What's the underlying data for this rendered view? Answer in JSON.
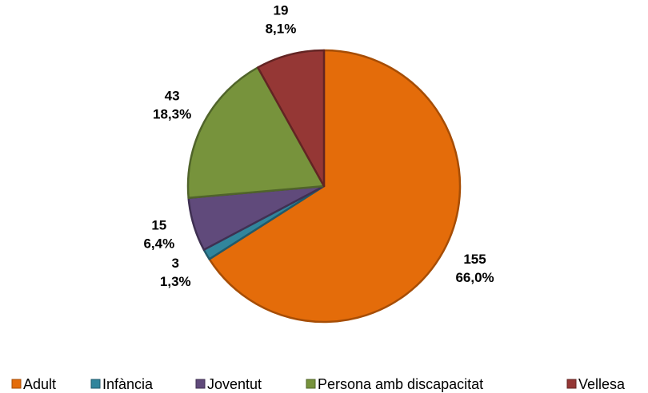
{
  "chart_data": {
    "type": "pie",
    "categories": [
      "Adult",
      "Infància",
      "Joventut",
      "Persona amb discapacitat",
      "Vellesa"
    ],
    "values": [
      155,
      3,
      15,
      43,
      19
    ],
    "percent_values": [
      66.0,
      1.3,
      6.4,
      18.3,
      8.1
    ],
    "percent_labels": [
      "66,0%",
      "1,3%",
      "6,4%",
      "18,3%",
      "8,1%"
    ],
    "colors": [
      "#e46c0a",
      "#31859c",
      "#604a7b",
      "#77933c",
      "#953735"
    ],
    "edge_colors": [
      "#a64d05",
      "#205a6b",
      "#3f3052",
      "#50642a",
      "#632423"
    ],
    "legend": "bottom"
  }
}
